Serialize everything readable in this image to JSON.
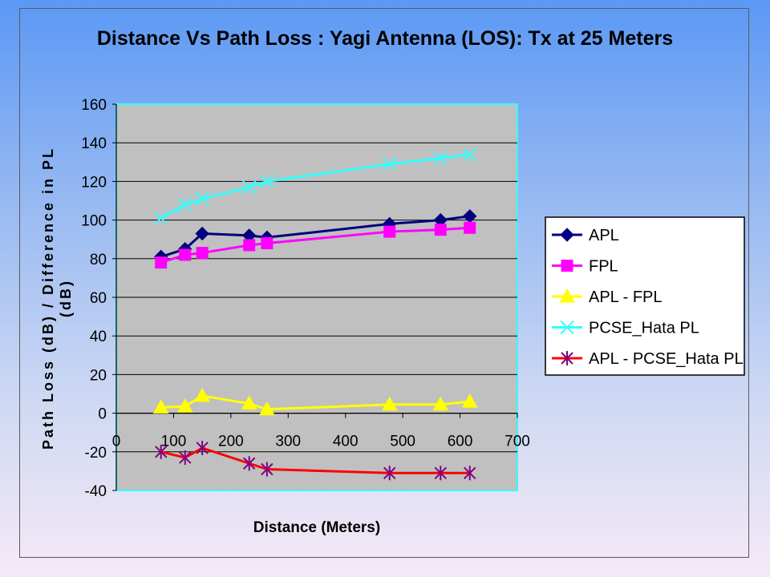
{
  "chart_data": {
    "type": "line",
    "title": "Distance Vs Path Loss : Yagi Antenna (LOS): Tx at 25 Meters",
    "xlabel": "Distance (Meters)",
    "ylabel": "Path Loss (dB) / Difference in PL (dB)",
    "xlim": [
      0,
      700
    ],
    "ylim": [
      -40,
      160
    ],
    "xticks": [
      0,
      100,
      200,
      300,
      400,
      500,
      600,
      700
    ],
    "yticks": [
      -40,
      -20,
      0,
      20,
      40,
      60,
      80,
      100,
      120,
      140,
      160
    ],
    "grid": "horizontal",
    "legend_position": "right",
    "series": [
      {
        "name": "APL",
        "color": "#000080",
        "marker": "diamond",
        "x": [
          78,
          120,
          150,
          232,
          263,
          477,
          566,
          617
        ],
        "y": [
          81,
          85,
          93,
          92,
          91,
          98,
          100,
          102
        ]
      },
      {
        "name": "FPL",
        "color": "#ff00ff",
        "marker": "square",
        "x": [
          78,
          120,
          150,
          232,
          263,
          477,
          566,
          617
        ],
        "y": [
          78,
          82,
          83,
          87,
          88,
          94,
          95,
          96
        ]
      },
      {
        "name": "APL - FPL",
        "color": "#ffff00",
        "marker": "triangle",
        "x": [
          78,
          120,
          150,
          232,
          263,
          477,
          566,
          617
        ],
        "y": [
          3,
          3.5,
          9,
          5,
          2,
          4.5,
          4.5,
          6
        ]
      },
      {
        "name": "PCSE_Hata PL",
        "color": "#33ffff",
        "marker": "x",
        "x": [
          78,
          120,
          150,
          232,
          263,
          477,
          566,
          617
        ],
        "y": [
          101,
          108,
          111,
          117,
          120,
          129,
          132,
          134
        ]
      },
      {
        "name": "APL - PCSE_Hata PL",
        "color": "#ff0000",
        "marker_color": "#800080",
        "marker": "star",
        "x": [
          78,
          120,
          150,
          232,
          263,
          477,
          566,
          617
        ],
        "y": [
          -20,
          -23,
          -18,
          -26,
          -29,
          -31,
          -31,
          -31
        ]
      }
    ]
  }
}
